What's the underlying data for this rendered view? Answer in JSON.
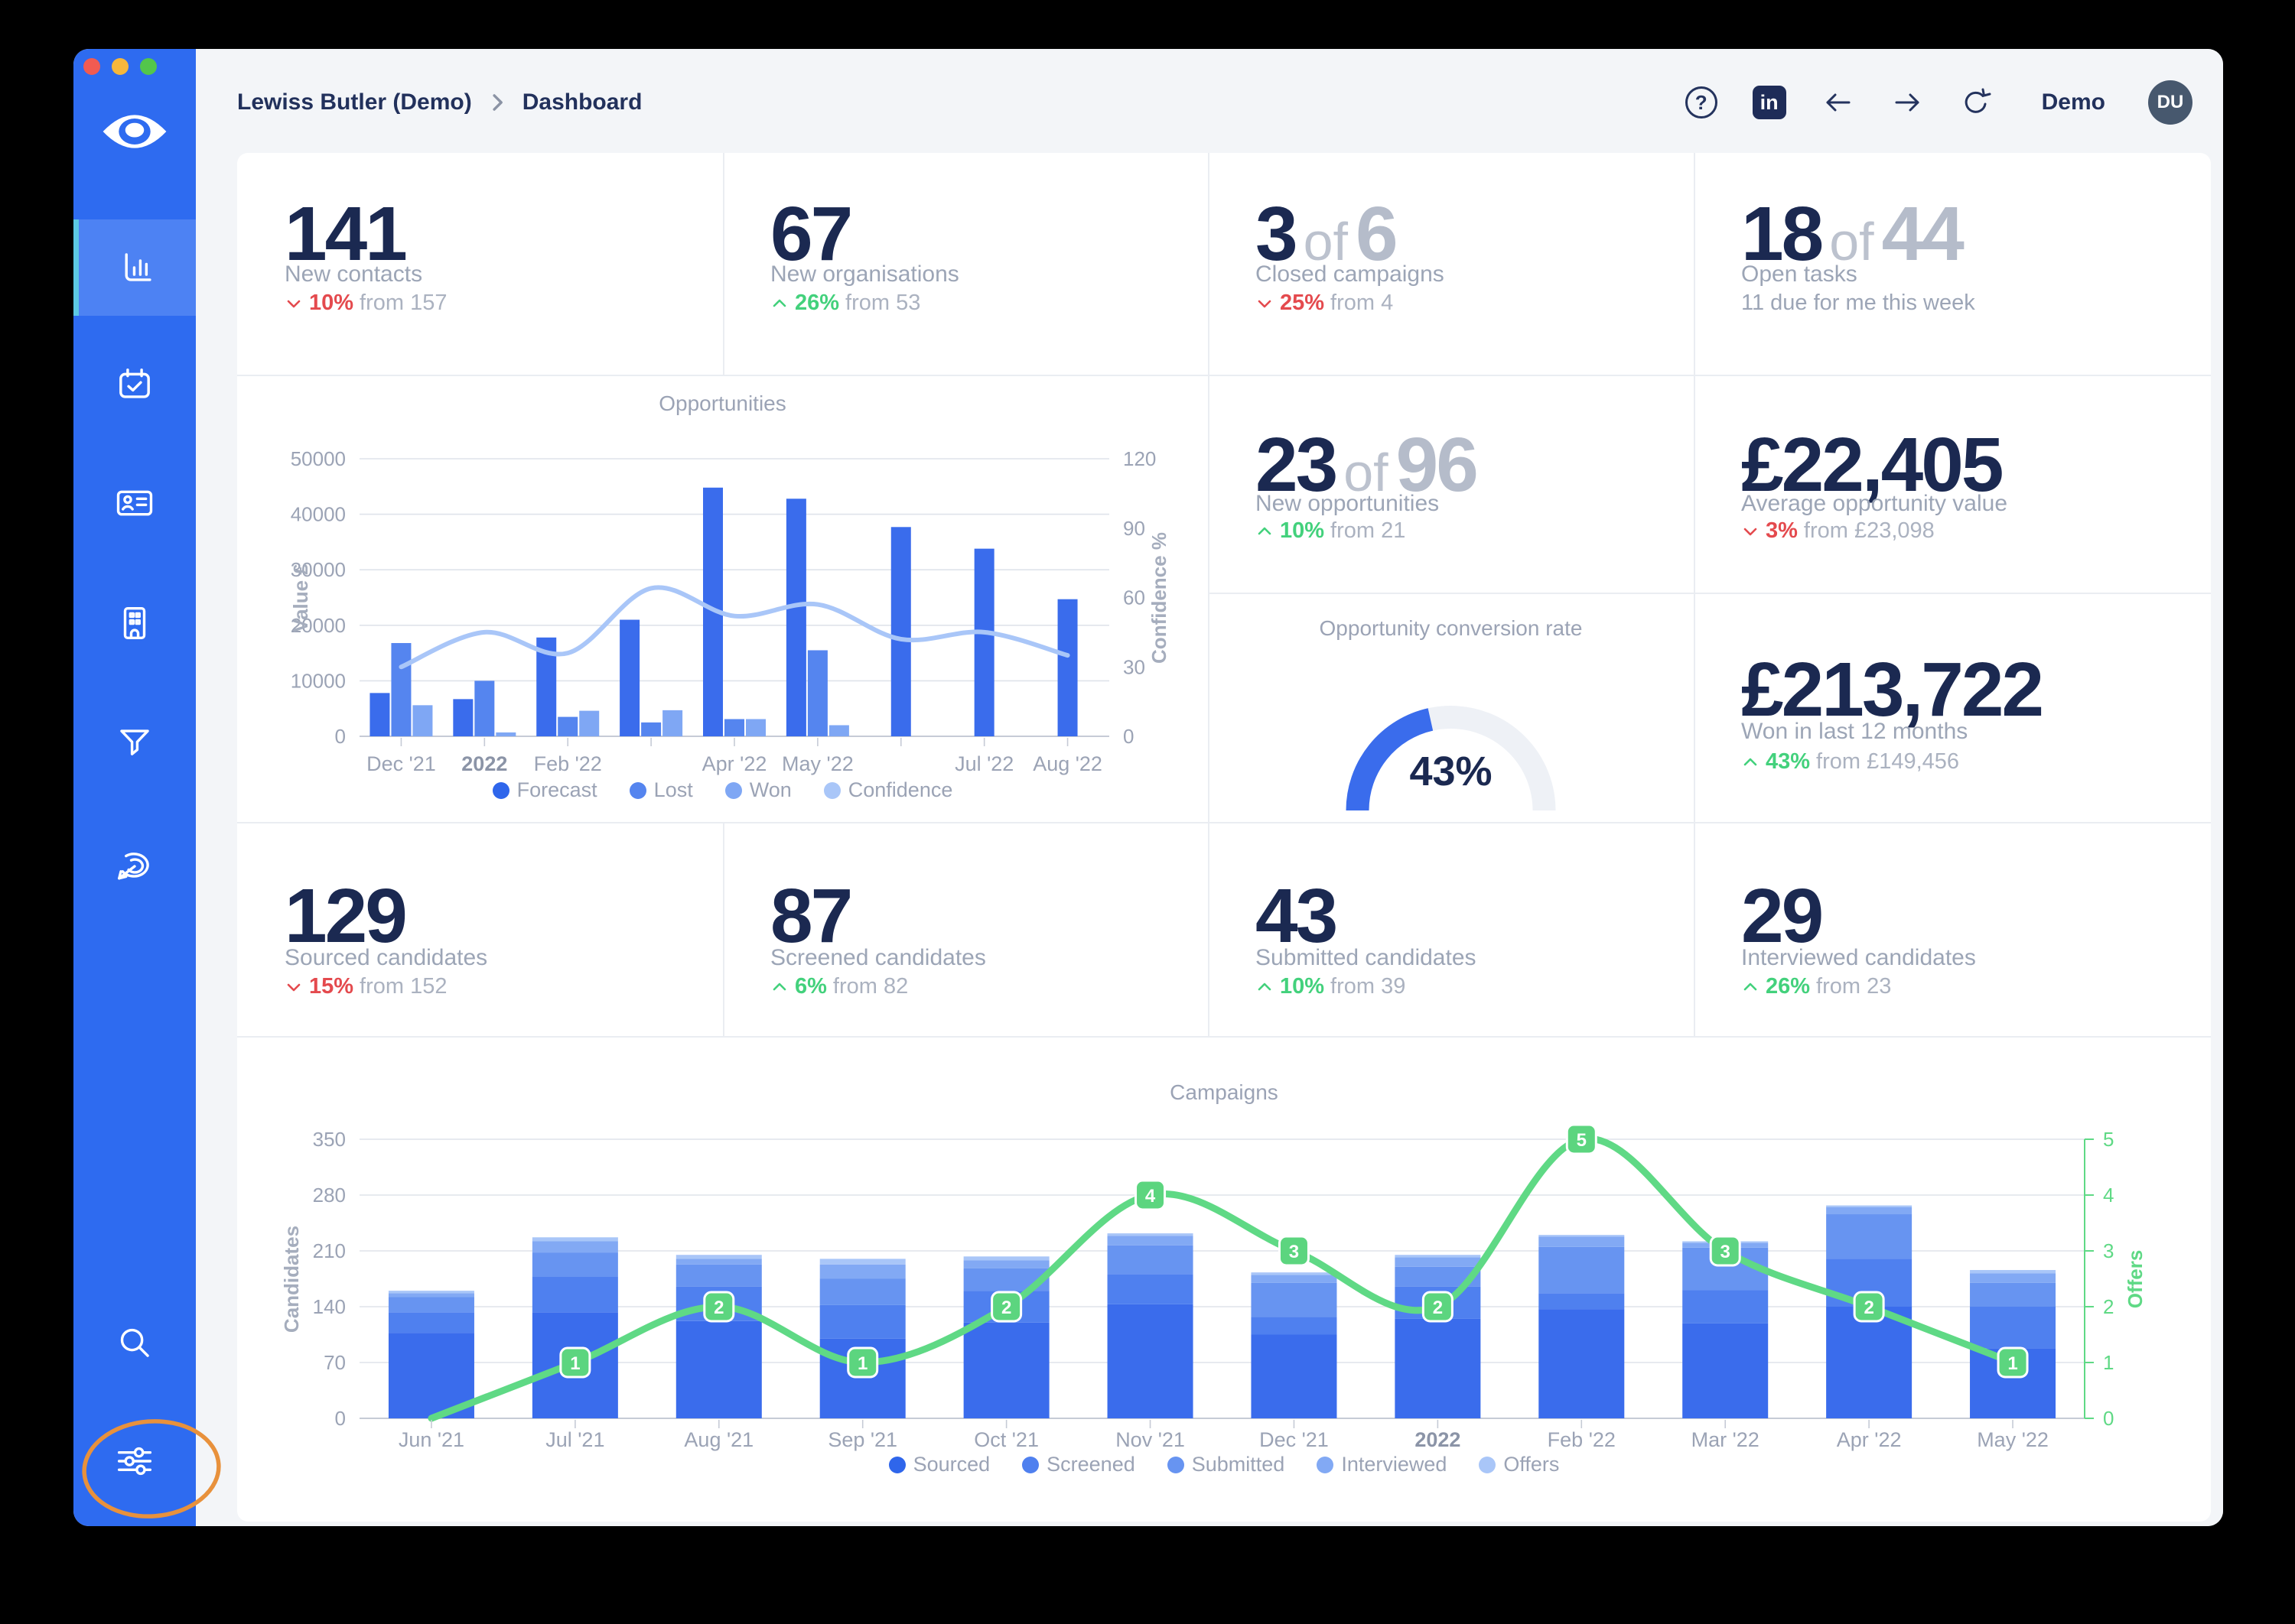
{
  "topbar": {
    "breadcrumb": {
      "account": "Lewiss Butler (Demo)",
      "page": "Dashboard"
    },
    "help_label": "?",
    "linkedin_label": "in",
    "demo_label": "Demo",
    "avatar_initials": "DU"
  },
  "sidebar": {
    "icons": [
      "eye-logo",
      "bar-chart",
      "calendar-check",
      "contact-card",
      "building",
      "filter-funnel",
      "dart-target",
      "search",
      "settings-sliders"
    ],
    "active_icon": "bar-chart",
    "colors": {
      "base": "#2E6BF0",
      "active_bg": "#4D82F3",
      "active_accent": "#5CC9E4"
    }
  },
  "annotation": {
    "type": "ellipse-highlight",
    "target": "settings-sliders",
    "color": "#E8913C"
  },
  "kpis": {
    "row1": [
      {
        "value": "141",
        "label": "New contacts",
        "delta": {
          "dir": "down",
          "pct": "10%",
          "from": "from 157"
        }
      },
      {
        "value": "67",
        "label": "New organisations",
        "delta": {
          "dir": "up",
          "pct": "26%",
          "from": "from 53"
        }
      },
      {
        "value": "3",
        "of": "6",
        "label": "Closed campaigns",
        "delta": {
          "dir": "down",
          "pct": "25%",
          "from": "from 4"
        }
      },
      {
        "value": "18",
        "of": "44",
        "label": "Open tasks",
        "sub": "11 due for me this week"
      }
    ],
    "row2": [
      {
        "value": "23",
        "of": "96",
        "label": "New opportunities",
        "delta": {
          "dir": "up",
          "pct": "10%",
          "from": "from 21"
        }
      },
      {
        "value": "£22,405",
        "label": "Average opportunity value",
        "delta": {
          "dir": "down",
          "pct": "3%",
          "from": "from £23,098"
        }
      },
      {
        "value": "£213,722",
        "label": "Won in last 12 months",
        "delta": {
          "dir": "up",
          "pct": "43%",
          "from": "from £149,456"
        }
      }
    ],
    "row3": [
      {
        "value": "129",
        "label": "Sourced candidates",
        "delta": {
          "dir": "down",
          "pct": "15%",
          "from": "from 152"
        }
      },
      {
        "value": "87",
        "label": "Screened candidates",
        "delta": {
          "dir": "up",
          "pct": "6%",
          "from": "from 82"
        }
      },
      {
        "value": "43",
        "label": "Submitted candidates",
        "delta": {
          "dir": "up",
          "pct": "10%",
          "from": "from 39"
        }
      },
      {
        "value": "29",
        "label": "Interviewed candidates",
        "delta": {
          "dir": "up",
          "pct": "26%",
          "from": "from 23"
        }
      }
    ]
  },
  "gauge": {
    "title": "Opportunity conversion rate",
    "value_pct": 43,
    "display": "43%",
    "color": "#3A6CEC",
    "track_color": "#EEF1F6"
  },
  "chart_data": [
    {
      "type": "bar",
      "title": "Opportunities",
      "x_labels": [
        "Dec '21",
        "2022",
        "Feb '22",
        "",
        "Apr '22",
        "May '22",
        "",
        "Jul '22",
        "Aug '22"
      ],
      "bold_x_index": 1,
      "ylabel_left": "Value £",
      "ylim_left": [
        0,
        50000
      ],
      "yticks_left": [
        0,
        10000,
        20000,
        30000,
        40000,
        50000
      ],
      "ylabel_right": "Confidence %",
      "ylim_right": [
        0,
        120
      ],
      "yticks_right": [
        0,
        30,
        60,
        90,
        120
      ],
      "series": [
        {
          "name": "Forecast",
          "color": "#3A6CEC",
          "values": [
            7800,
            6700,
            17800,
            21000,
            44800,
            42800,
            37700,
            33800,
            24700
          ]
        },
        {
          "name": "Lost",
          "color": "#5585EF",
          "values": [
            16800,
            10000,
            3500,
            2500,
            3100,
            15500,
            0,
            0,
            0
          ]
        },
        {
          "name": "Won",
          "color": "#7FA7F4",
          "values": [
            5600,
            700,
            4600,
            4700,
            3100,
            2000,
            0,
            0,
            0
          ]
        }
      ],
      "line_series": {
        "name": "Confidence",
        "color": "#A9C6F8",
        "axis": "right",
        "values": [
          30,
          45,
          36,
          64,
          52,
          57,
          42,
          45,
          35
        ]
      },
      "legend": [
        "Forecast",
        "Lost",
        "Won",
        "Confidence"
      ],
      "legend_colors": [
        "#2F66EB",
        "#5585EF",
        "#7FA7F4",
        "#A9C6F8"
      ],
      "grid": true,
      "legend_position": "bottom"
    },
    {
      "type": "stacked-bar",
      "title": "Campaigns",
      "categories": [
        "Jun '21",
        "Jul '21",
        "Aug '21",
        "Sep '21",
        "Oct '21",
        "Nov '21",
        "Dec '21",
        "2022",
        "Feb '22",
        "Mar '22",
        "Apr '22",
        "May '22"
      ],
      "bold_x_index": 7,
      "ylabel_left": "Candidates",
      "ylim_left": [
        0,
        350
      ],
      "yticks_left": [
        0,
        70,
        140,
        210,
        280,
        350
      ],
      "ylabel_right": "Offers",
      "ylim_right": [
        0,
        5
      ],
      "yticks_right": [
        0,
        1,
        2,
        3,
        4,
        5
      ],
      "series": [
        {
          "name": "Sourced",
          "color": "#3A6CEC",
          "values": [
            107,
            133,
            122,
            100,
            120,
            143,
            105,
            125,
            137,
            119,
            140,
            88
          ]
        },
        {
          "name": "Screened",
          "color": "#4F80EF",
          "values": [
            26,
            45,
            43,
            42,
            40,
            38,
            22,
            40,
            20,
            42,
            60,
            52
          ]
        },
        {
          "name": "Submitted",
          "color": "#6794F1",
          "values": [
            19,
            30,
            28,
            33,
            28,
            36,
            43,
            25,
            58,
            53,
            56,
            30
          ]
        },
        {
          "name": "Interviewed",
          "color": "#82A9F4",
          "values": [
            5,
            14,
            7,
            18,
            10,
            12,
            10,
            12,
            13,
            6,
            9,
            12
          ]
        },
        {
          "name": "Offers",
          "color": "#A9C6F8",
          "values": [
            3,
            5,
            5,
            7,
            5,
            3,
            3,
            3,
            2,
            2,
            2,
            4
          ]
        }
      ],
      "line_series": {
        "name": "Offers",
        "color": "#5FD985",
        "axis": "right",
        "values": [
          0,
          1,
          2,
          1,
          2,
          4,
          3,
          2,
          5,
          3,
          2,
          1
        ],
        "point_labels": true,
        "skip_label_indices": [
          0
        ],
        "label_bg": "#5CD57F"
      },
      "legend": [
        "Sourced",
        "Screened",
        "Submitted",
        "Interviewed",
        "Offers"
      ],
      "legend_colors": [
        "#2F66EB",
        "#4F80EF",
        "#6794F1",
        "#82A9F4",
        "#A9C6F8"
      ],
      "grid": true,
      "legend_position": "bottom"
    }
  ]
}
